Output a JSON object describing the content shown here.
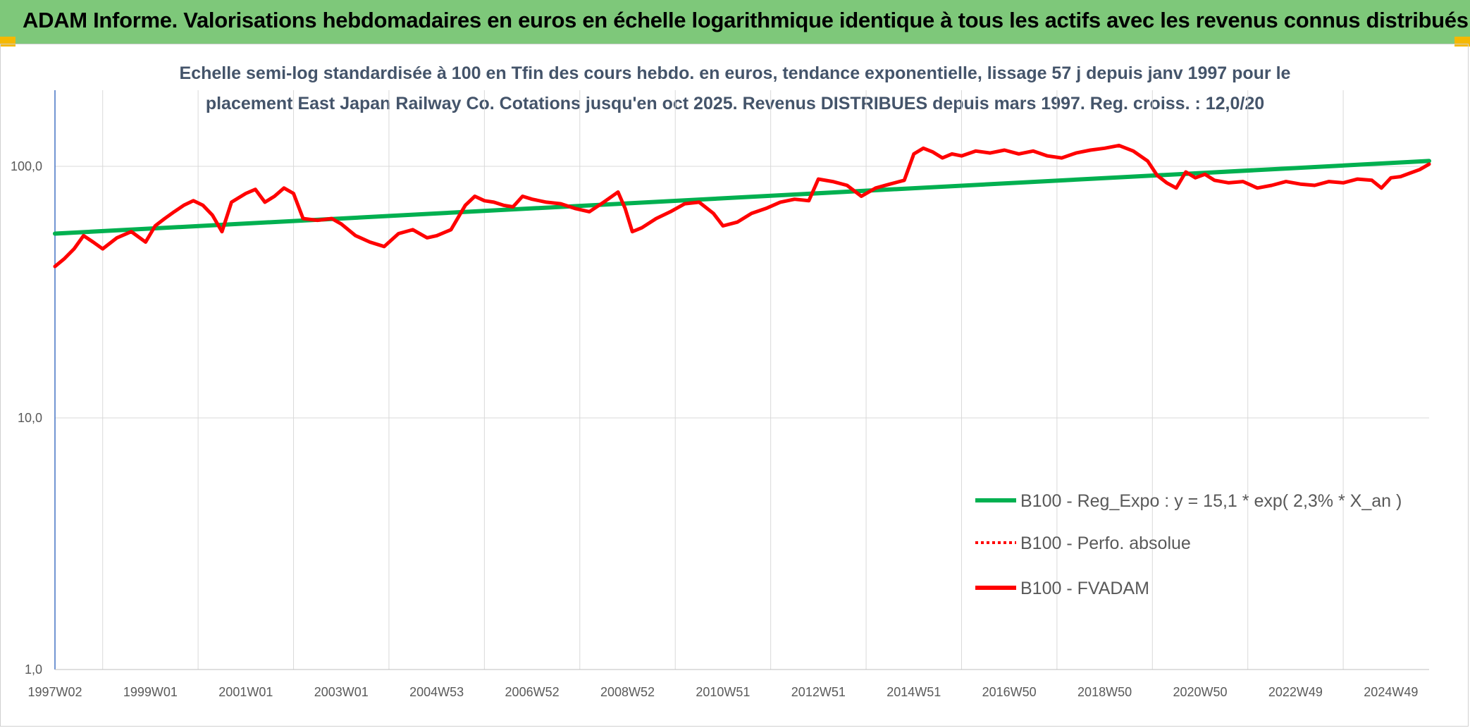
{
  "header": {
    "title": "ADAM Informe. Valorisations hebdomadaires en euros en échelle logarithmique identique à tous les actifs avec les revenus connus distribués"
  },
  "chart_data": {
    "type": "line",
    "title_line1": "Echelle semi-log standardisée à 100 en Tfin des cours hebdo. en euros, tendance exponentielle, lissage 57 j depuis janv 1997 pour le",
    "title_line2": "placement East Japan Railway Co. Cotations jusqu'en oct 2025. Revenus DISTRIBUES depuis mars 1997. Reg. croiss. : 12,0/20",
    "y_scale": "log",
    "ylim": [
      1,
      180
    ],
    "xlim": [
      1997.0,
      2025.8
    ],
    "y_ticks": [
      {
        "value": 1,
        "label": "1,0"
      },
      {
        "value": 10,
        "label": "10,0"
      },
      {
        "value": 100,
        "label": "100,0"
      }
    ],
    "x_ticks": [
      {
        "value": 1997.0,
        "label": "1997W02"
      },
      {
        "value": 1999.0,
        "label": "1999W01"
      },
      {
        "value": 2001.0,
        "label": "2001W01"
      },
      {
        "value": 2003.0,
        "label": "2003W01"
      },
      {
        "value": 2005.0,
        "label": "2004W53"
      },
      {
        "value": 2007.0,
        "label": "2006W52"
      },
      {
        "value": 2009.0,
        "label": "2008W52"
      },
      {
        "value": 2011.0,
        "label": "2010W51"
      },
      {
        "value": 2013.0,
        "label": "2012W51"
      },
      {
        "value": 2015.0,
        "label": "2014W51"
      },
      {
        "value": 2017.0,
        "label": "2016W50"
      },
      {
        "value": 2019.0,
        "label": "2018W50"
      },
      {
        "value": 2021.0,
        "label": "2020W50"
      },
      {
        "value": 2023.0,
        "label": "2022W49"
      },
      {
        "value": 2025.0,
        "label": "2024W49"
      }
    ],
    "grid": "vertical-and-horizontal",
    "legend_position": "bottom-right",
    "series": [
      {
        "name": "B100 - Reg_Expo : y = 15,1 * exp( 2,3% *  X_an )",
        "color": "#00b050",
        "style": "solid",
        "x": [
          1997.0,
          2025.8
        ],
        "y": [
          54,
          105
        ]
      },
      {
        "name": "B100 - Perfo. absolue",
        "color": "#ff0000",
        "style": "dotted",
        "x": [],
        "y": []
      },
      {
        "name": "B100 - FVADAM",
        "color": "#ff0000",
        "style": "solid",
        "x": [
          1997.0,
          1997.2,
          1997.4,
          1997.6,
          1997.8,
          1998.0,
          1998.3,
          1998.6,
          1998.9,
          1999.1,
          1999.3,
          1999.5,
          1999.7,
          1999.9,
          2000.1,
          2000.3,
          2000.5,
          2000.7,
          2000.85,
          2001.0,
          2001.2,
          2001.4,
          2001.6,
          2001.8,
          2002.0,
          2002.2,
          2002.5,
          2002.8,
          2003.0,
          2003.3,
          2003.6,
          2003.9,
          2004.2,
          2004.5,
          2004.8,
          2005.0,
          2005.3,
          2005.6,
          2005.8,
          2006.0,
          2006.2,
          2006.4,
          2006.6,
          2006.8,
          2007.0,
          2007.3,
          2007.6,
          2007.9,
          2008.2,
          2008.5,
          2008.8,
          2008.95,
          2009.1,
          2009.3,
          2009.6,
          2009.9,
          2010.2,
          2010.5,
          2010.8,
          2011.0,
          2011.3,
          2011.6,
          2011.9,
          2012.2,
          2012.5,
          2012.8,
          2013.0,
          2013.3,
          2013.6,
          2013.9,
          2014.2,
          2014.5,
          2014.8,
          2015.0,
          2015.2,
          2015.4,
          2015.6,
          2015.8,
          2016.0,
          2016.3,
          2016.6,
          2016.9,
          2017.2,
          2017.5,
          2017.8,
          2018.1,
          2018.4,
          2018.7,
          2019.0,
          2019.3,
          2019.6,
          2019.9,
          2020.1,
          2020.3,
          2020.5,
          2020.7,
          2020.9,
          2021.1,
          2021.3,
          2021.6,
          2021.9,
          2022.2,
          2022.5,
          2022.8,
          2023.1,
          2023.4,
          2023.7,
          2024.0,
          2024.3,
          2024.6,
          2024.8,
          2025.0,
          2025.2,
          2025.4,
          2025.6,
          2025.8
        ],
        "y": [
          40,
          43,
          47,
          53,
          50,
          47,
          52,
          55,
          50,
          58,
          62,
          66,
          70,
          73,
          70,
          64,
          55,
          72,
          75,
          78,
          81,
          72,
          76,
          82,
          78,
          62,
          61,
          62,
          59,
          53,
          50,
          48,
          54,
          56,
          52,
          53,
          56,
          70,
          76,
          73,
          72,
          70,
          69,
          76,
          74,
          72,
          71,
          68,
          66,
          72,
          79,
          68,
          55,
          57,
          62,
          66,
          71,
          72,
          65,
          58,
          60,
          65,
          68,
          72,
          74,
          73,
          89,
          87,
          84,
          76,
          82,
          85,
          88,
          112,
          118,
          114,
          108,
          112,
          110,
          115,
          113,
          116,
          112,
          115,
          110,
          108,
          113,
          116,
          118,
          121,
          115,
          105,
          92,
          86,
          82,
          95,
          90,
          93,
          88,
          86,
          87,
          82,
          84,
          87,
          85,
          84,
          87,
          86,
          89,
          88,
          82,
          90,
          91,
          94,
          97,
          102
        ]
      }
    ]
  }
}
